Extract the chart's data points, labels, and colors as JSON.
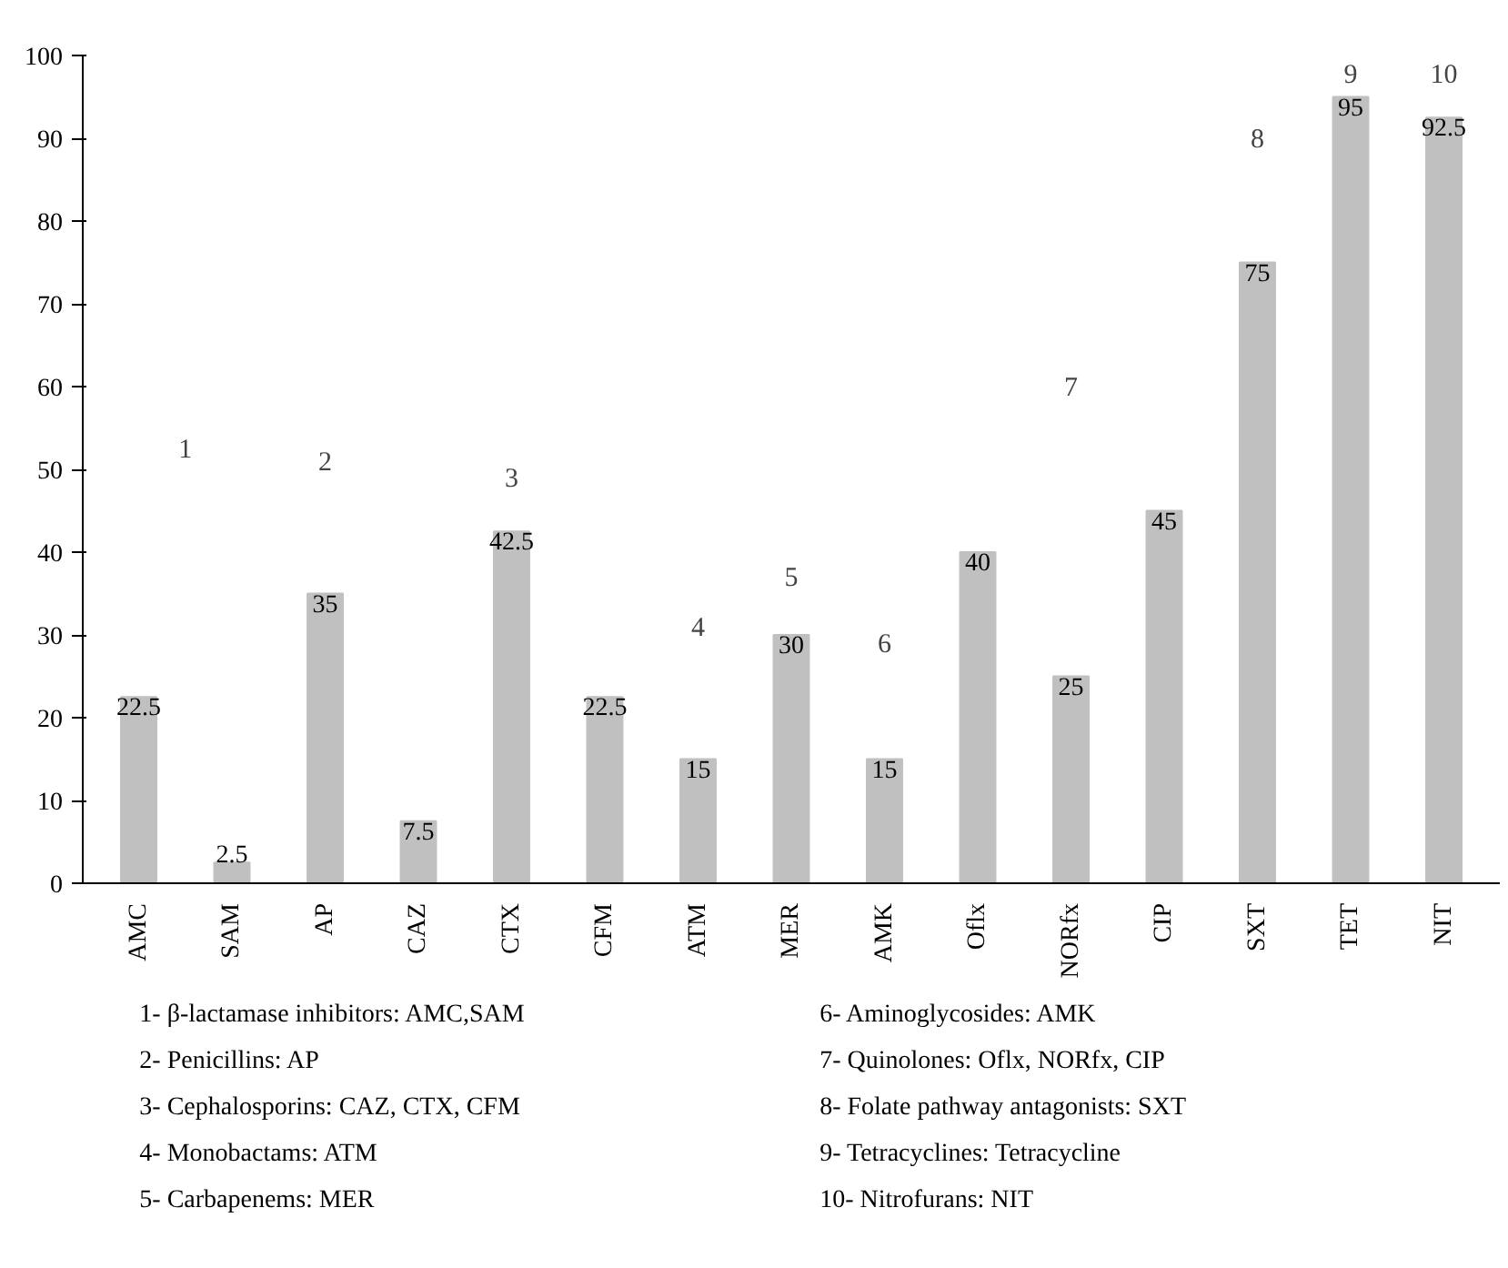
{
  "chart_data": {
    "type": "bar",
    "categories": [
      "AMC",
      "SAM",
      "AP",
      "CAZ",
      "CTX",
      "CFM",
      "ATM",
      "MER",
      "AMK",
      "Oflx",
      "NORfx",
      "CIP",
      "SXT",
      "TET",
      "NIT"
    ],
    "values": [
      22.5,
      2.5,
      35,
      7.5,
      42.5,
      22.5,
      15,
      30,
      15,
      40,
      25,
      45,
      75,
      95,
      92.5
    ],
    "color": "#c0c0c0",
    "ylim": [
      0,
      100
    ],
    "yticks": [
      0,
      10,
      20,
      30,
      40,
      50,
      60,
      70,
      80,
      90,
      100
    ],
    "grid": false,
    "data_labels": true,
    "annotations": [
      "1",
      "2",
      "3",
      "4",
      "5",
      "6",
      "7",
      "8",
      "9",
      "10",
      "1- β-lactamase inhibitors: AMC,SAM",
      "2- Penicillins: AP",
      "3- Cephalosporins: CAZ, CTX, CFM",
      "4- Monobactams: ATM",
      "5- Carbapenems: MER",
      "6- Aminoglycosides: AMK",
      "7- Quinolones: Oflx, NORfx, CIP",
      "8- Folate pathway antagonists: SXT",
      "9- Tetracyclines: Tetracycline",
      "10- Nitrofurans: NIT"
    ]
  }
}
